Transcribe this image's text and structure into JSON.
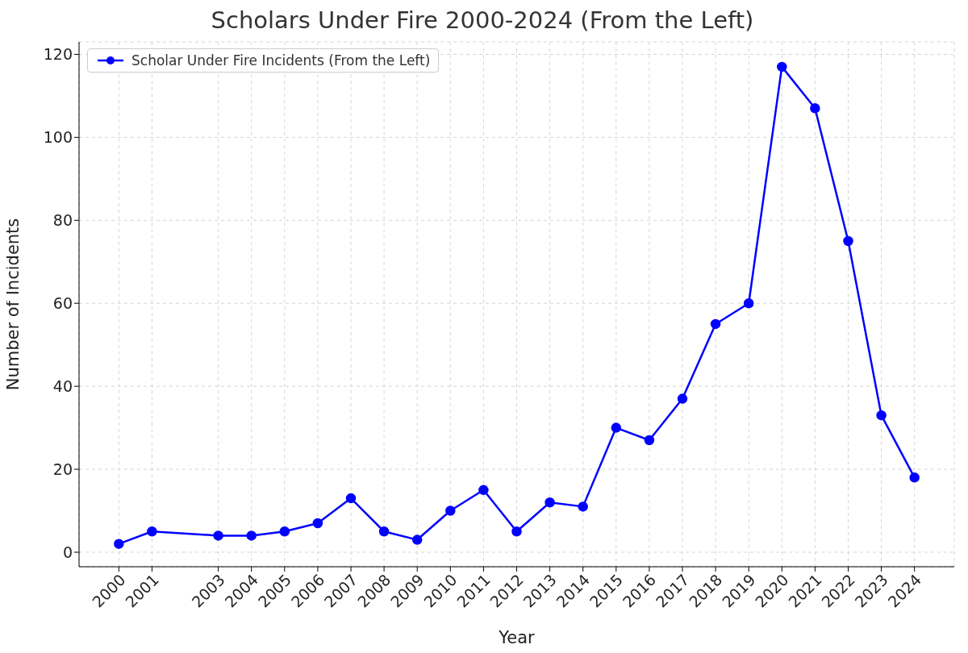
{
  "chart_data": {
    "type": "line",
    "title": "Scholars Under Fire 2000-2024 (From the Left)",
    "xlabel": "Year",
    "ylabel": "Number of Incidents",
    "x": [
      2000,
      2001,
      2003,
      2004,
      2005,
      2006,
      2007,
      2008,
      2009,
      2010,
      2011,
      2012,
      2013,
      2014,
      2015,
      2016,
      2017,
      2018,
      2019,
      2020,
      2021,
      2022,
      2023,
      2024
    ],
    "series": [
      {
        "name": "Scholar Under Fire Incidents (From the Left)",
        "color": "#0000ff",
        "values": [
          2,
          5,
          4,
          4,
          5,
          7,
          13,
          5,
          3,
          10,
          15,
          5,
          12,
          11,
          30,
          27,
          37,
          55,
          60,
          117,
          107,
          75,
          33,
          18
        ]
      }
    ],
    "xlim": [
      1998.8,
      2025.2
    ],
    "xticks": [
      2000,
      2001,
      2003,
      2004,
      2005,
      2006,
      2007,
      2008,
      2009,
      2010,
      2011,
      2012,
      2013,
      2014,
      2015,
      2016,
      2017,
      2018,
      2019,
      2020,
      2021,
      2022,
      2023,
      2024
    ],
    "ylim": [
      -3.5,
      123
    ],
    "yticks": [
      0,
      20,
      40,
      60,
      80,
      100,
      120
    ],
    "grid": true,
    "legend": "top left",
    "marker": "circle",
    "line_style": "solid"
  }
}
